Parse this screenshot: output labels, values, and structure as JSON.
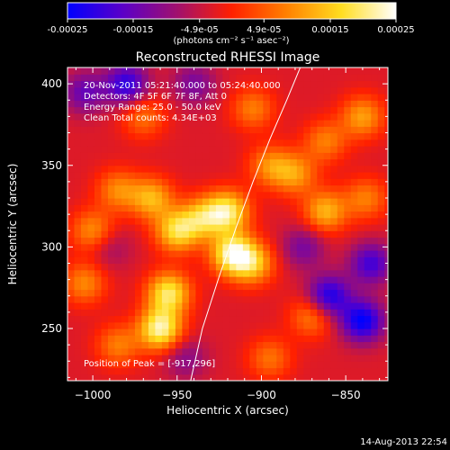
{
  "colorbar": {
    "ticks": [
      "-0.00025",
      "-0.00015",
      "-4.9e-05",
      "4.9e-05",
      "0.00015",
      "0.00025"
    ],
    "tick_values": [
      -0.00025,
      -0.00015,
      -4.9e-05,
      4.9e-05,
      0.00015,
      0.00025
    ],
    "range": [
      -0.00025,
      0.00025
    ],
    "unit_label": "(photons cm⁻² s⁻¹ asec⁻²)",
    "colors": [
      "#0000ff",
      "#5a00c8",
      "#a0106e",
      "#ff2000",
      "#ff8000",
      "#ffdd20",
      "#ffffff"
    ]
  },
  "chart_data": {
    "type": "heatmap",
    "title": "Reconstructed RHESSI Image",
    "xlabel": "Heliocentric X (arcsec)",
    "ylabel": "Heliocentric Y (arcsec)",
    "xlim": [
      -1015,
      -825
    ],
    "ylim": [
      218,
      410
    ],
    "xticks": [
      -1000,
      -950,
      -900,
      -850
    ],
    "yticks": [
      250,
      300,
      350,
      400
    ],
    "xtick_labels": [
      "−1000",
      "−950",
      "−900",
      "−850"
    ],
    "ytick_labels": [
      "250",
      "300",
      "350",
      "400"
    ],
    "annotations": [
      "20-Nov-2011 05:21:40.000 to 05:24:40.000",
      "Detectors: 4F 5F 6F 7F 8F, Att 0",
      "Energy Range: 25.0 - 50.0 keV",
      "Clean    Total counts: 4.34E+03"
    ],
    "position_label": "Position of Peak = [-917,296]",
    "peak": {
      "x": -917,
      "y": 296
    },
    "blobs": [
      {
        "x": -960,
        "y": 250,
        "v": 0.00025
      },
      {
        "x": -955,
        "y": 272,
        "v": 0.00022
      },
      {
        "x": -950,
        "y": 310,
        "v": 0.0002
      },
      {
        "x": -965,
        "y": 330,
        "v": 0.00016
      },
      {
        "x": -935,
        "y": 318,
        "v": 0.00016
      },
      {
        "x": -920,
        "y": 322,
        "v": 0.00022
      },
      {
        "x": -917,
        "y": 296,
        "v": 0.00025
      },
      {
        "x": -905,
        "y": 290,
        "v": 0.00016
      },
      {
        "x": -1000,
        "y": 310,
        "v": 0.00013
      },
      {
        "x": -985,
        "y": 335,
        "v": 0.00012
      },
      {
        "x": -1005,
        "y": 278,
        "v": 0.00012
      },
      {
        "x": -970,
        "y": 380,
        "v": 0.0001
      },
      {
        "x": -905,
        "y": 385,
        "v": 0.00011
      },
      {
        "x": -895,
        "y": 350,
        "v": 0.00012
      },
      {
        "x": -880,
        "y": 345,
        "v": 0.00013
      },
      {
        "x": -862,
        "y": 322,
        "v": 0.00016
      },
      {
        "x": -862,
        "y": 365,
        "v": 0.00011
      },
      {
        "x": -840,
        "y": 380,
        "v": 0.00014
      },
      {
        "x": -838,
        "y": 330,
        "v": 0.00011
      },
      {
        "x": -985,
        "y": 240,
        "v": 0.00011
      },
      {
        "x": -870,
        "y": 258,
        "v": 0.00012
      },
      {
        "x": -895,
        "y": 232,
        "v": 0.0001
      },
      {
        "x": -980,
        "y": 400,
        "v": -0.00018
      },
      {
        "x": -860,
        "y": 270,
        "v": -0.0002
      },
      {
        "x": -840,
        "y": 255,
        "v": -0.00022
      },
      {
        "x": -835,
        "y": 290,
        "v": -0.00016
      },
      {
        "x": -1005,
        "y": 395,
        "v": -0.00012
      },
      {
        "x": -940,
        "y": 400,
        "v": -0.0001
      },
      {
        "x": -875,
        "y": 300,
        "v": -0.0001
      },
      {
        "x": -990,
        "y": 300,
        "v": -6e-05
      },
      {
        "x": -945,
        "y": 232,
        "v": -8e-05
      }
    ],
    "limb_curve": {
      "x": [
        -942,
        -935,
        -925,
        -915,
        -905,
        -895,
        -885,
        -877
      ],
      "y": [
        218,
        250,
        282,
        312,
        340,
        366,
        390,
        410
      ]
    }
  },
  "footer": {
    "timestamp": "14-Aug-2013 22:54"
  }
}
